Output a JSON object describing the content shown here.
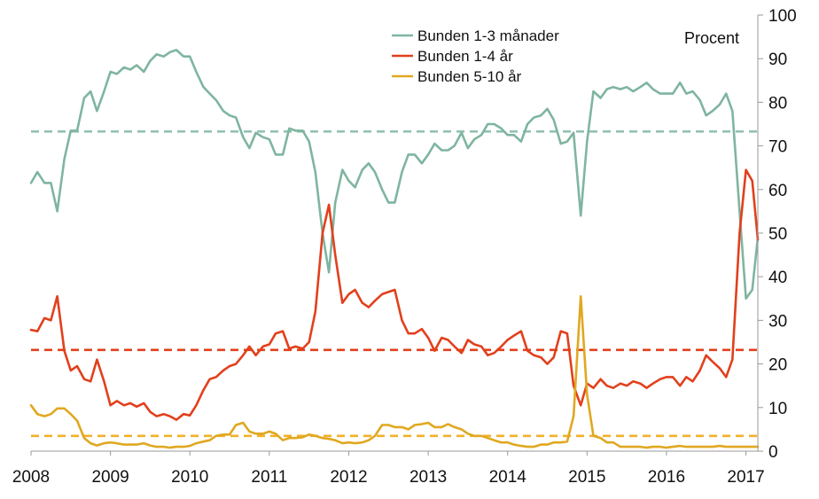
{
  "chart_data": {
    "type": "line",
    "unit_label": "Procent",
    "ylim": [
      0,
      100
    ],
    "yticks": [
      "0",
      "10",
      "20",
      "30",
      "40",
      "50",
      "60",
      "70",
      "80",
      "90",
      "100"
    ],
    "xlim": [
      2008,
      2017.15
    ],
    "xticks": [
      "2008",
      "2009",
      "2010",
      "2011",
      "2012",
      "2013",
      "2014",
      "2015",
      "2016",
      "2017"
    ],
    "legend_position": "top-right",
    "colors": {
      "green": "#7fb5a0",
      "red": "#e2401c",
      "gold": "#e0a820"
    },
    "series": [
      {
        "name": "Bunden 1-3 månader",
        "color": "#7fb5a0",
        "x": [
          2008.0,
          2008.08,
          2008.17,
          2008.25,
          2008.33,
          2008.42,
          2008.5,
          2008.58,
          2008.67,
          2008.75,
          2008.83,
          2008.92,
          2009.0,
          2009.08,
          2009.17,
          2009.25,
          2009.33,
          2009.42,
          2009.5,
          2009.58,
          2009.67,
          2009.75,
          2009.83,
          2009.92,
          2010.0,
          2010.08,
          2010.17,
          2010.25,
          2010.33,
          2010.42,
          2010.5,
          2010.58,
          2010.67,
          2010.75,
          2010.83,
          2010.92,
          2011.0,
          2011.08,
          2011.17,
          2011.25,
          2011.33,
          2011.42,
          2011.5,
          2011.58,
          2011.67,
          2011.75,
          2011.83,
          2011.92,
          2012.0,
          2012.08,
          2012.17,
          2012.25,
          2012.33,
          2012.42,
          2012.5,
          2012.58,
          2012.67,
          2012.75,
          2012.83,
          2012.92,
          2013.0,
          2013.08,
          2013.17,
          2013.25,
          2013.33,
          2013.42,
          2013.5,
          2013.58,
          2013.67,
          2013.75,
          2013.83,
          2013.92,
          2014.0,
          2014.08,
          2014.17,
          2014.25,
          2014.33,
          2014.42,
          2014.5,
          2014.58,
          2014.67,
          2014.75,
          2014.83,
          2014.92,
          2015.0,
          2015.08,
          2015.17,
          2015.25,
          2015.33,
          2015.42,
          2015.5,
          2015.58,
          2015.67,
          2015.75,
          2015.83,
          2015.92,
          2016.0,
          2016.08,
          2016.17,
          2016.25,
          2016.33,
          2016.42,
          2016.5,
          2016.58,
          2016.67,
          2016.75,
          2016.83,
          2016.92,
          2017.0,
          2017.08,
          2017.15
        ],
        "values": [
          61.5,
          64,
          61.5,
          61.5,
          55,
          67,
          73.5,
          73.5,
          81,
          82.5,
          78,
          82.5,
          87,
          86.5,
          88,
          87.5,
          88.5,
          87,
          89.5,
          91,
          90.5,
          91.5,
          92,
          90.5,
          90.5,
          87,
          83.5,
          82,
          80.5,
          78,
          77,
          76.5,
          72,
          69.5,
          73,
          72,
          71.5,
          68,
          68,
          74,
          73.5,
          73.5,
          71,
          64,
          50,
          41,
          57,
          64.5,
          62,
          60.5,
          64.5,
          66,
          64,
          60,
          57,
          57,
          64,
          68,
          68,
          66,
          68,
          70.5,
          69,
          69,
          70,
          73,
          69.5,
          71.5,
          72.5,
          75,
          75,
          74,
          72.5,
          72.5,
          71,
          75,
          76.5,
          77,
          78.5,
          76,
          70.5,
          71,
          73,
          54,
          71,
          82.5,
          81,
          83,
          83.5,
          83,
          83.5,
          82.5,
          83.5,
          84.5,
          83,
          82,
          82,
          82,
          84.5,
          82,
          82.5,
          80.5,
          77,
          78,
          79.5,
          82,
          78,
          55,
          35,
          37,
          49
        ]
      },
      {
        "name": "Bunden 1-4 år",
        "color": "#e2401c",
        "x": [
          2008.0,
          2008.08,
          2008.17,
          2008.25,
          2008.33,
          2008.42,
          2008.5,
          2008.58,
          2008.67,
          2008.75,
          2008.83,
          2008.92,
          2009.0,
          2009.08,
          2009.17,
          2009.25,
          2009.33,
          2009.42,
          2009.5,
          2009.58,
          2009.67,
          2009.75,
          2009.83,
          2009.92,
          2010.0,
          2010.08,
          2010.17,
          2010.25,
          2010.33,
          2010.42,
          2010.5,
          2010.58,
          2010.67,
          2010.75,
          2010.83,
          2010.92,
          2011.0,
          2011.08,
          2011.17,
          2011.25,
          2011.33,
          2011.42,
          2011.5,
          2011.58,
          2011.67,
          2011.75,
          2011.83,
          2011.92,
          2012.0,
          2012.08,
          2012.17,
          2012.25,
          2012.33,
          2012.42,
          2012.5,
          2012.58,
          2012.67,
          2012.75,
          2012.83,
          2012.92,
          2013.0,
          2013.08,
          2013.17,
          2013.25,
          2013.33,
          2013.42,
          2013.5,
          2013.58,
          2013.67,
          2013.75,
          2013.83,
          2013.92,
          2014.0,
          2014.08,
          2014.17,
          2014.25,
          2014.33,
          2014.42,
          2014.5,
          2014.58,
          2014.67,
          2014.75,
          2014.83,
          2014.92,
          2015.0,
          2015.08,
          2015.17,
          2015.25,
          2015.33,
          2015.42,
          2015.5,
          2015.58,
          2015.67,
          2015.75,
          2015.83,
          2015.92,
          2016.0,
          2016.08,
          2016.17,
          2016.25,
          2016.33,
          2016.42,
          2016.5,
          2016.58,
          2016.67,
          2016.75,
          2016.83,
          2016.92,
          2017.0,
          2017.08,
          2017.15
        ],
        "values": [
          27.8,
          27.5,
          30.5,
          30,
          35.5,
          23,
          18.5,
          19.5,
          16.5,
          16,
          21,
          16,
          10.5,
          11.5,
          10.5,
          11,
          10.2,
          11,
          9,
          8,
          8.5,
          8,
          7.2,
          8.5,
          8.2,
          10.5,
          14,
          16.5,
          17,
          18.5,
          19.5,
          20,
          22,
          24,
          22,
          24,
          24.5,
          27,
          27.5,
          23.5,
          24,
          23.5,
          25,
          32,
          50,
          56.5,
          45,
          34,
          36,
          37,
          34,
          33,
          34.5,
          36,
          36.5,
          37,
          30,
          27,
          27,
          28,
          26,
          23,
          26,
          25.5,
          24,
          22.5,
          25.5,
          24.5,
          24,
          22,
          22.5,
          24,
          25.5,
          26.5,
          27.5,
          23,
          22,
          21.5,
          20,
          21.5,
          27.5,
          27,
          15,
          10.5,
          15.5,
          14.5,
          16.5,
          15,
          14.5,
          15.5,
          15,
          16,
          15.5,
          14.5,
          15.5,
          16.5,
          17,
          17,
          15,
          17,
          16,
          18.5,
          22,
          20.5,
          19,
          17,
          21,
          50,
          64.5,
          62,
          48.5
        ]
      },
      {
        "name": "Bunden 5-10 år",
        "color": "#e0a820",
        "x": [
          2008.0,
          2008.08,
          2008.17,
          2008.25,
          2008.33,
          2008.42,
          2008.5,
          2008.58,
          2008.67,
          2008.75,
          2008.83,
          2008.92,
          2009.0,
          2009.08,
          2009.17,
          2009.25,
          2009.33,
          2009.42,
          2009.5,
          2009.58,
          2009.67,
          2009.75,
          2009.83,
          2009.92,
          2010.0,
          2010.08,
          2010.17,
          2010.25,
          2010.33,
          2010.42,
          2010.5,
          2010.58,
          2010.67,
          2010.75,
          2010.83,
          2010.92,
          2011.0,
          2011.08,
          2011.17,
          2011.25,
          2011.33,
          2011.42,
          2011.5,
          2011.58,
          2011.67,
          2011.75,
          2011.83,
          2011.92,
          2012.0,
          2012.08,
          2012.17,
          2012.25,
          2012.33,
          2012.42,
          2012.5,
          2012.58,
          2012.67,
          2012.75,
          2012.83,
          2012.92,
          2013.0,
          2013.08,
          2013.17,
          2013.25,
          2013.33,
          2013.42,
          2013.5,
          2013.58,
          2013.67,
          2013.75,
          2013.83,
          2013.92,
          2014.0,
          2014.08,
          2014.17,
          2014.25,
          2014.33,
          2014.42,
          2014.5,
          2014.58,
          2014.67,
          2014.75,
          2014.83,
          2014.92,
          2015.0,
          2015.08,
          2015.17,
          2015.25,
          2015.33,
          2015.42,
          2015.5,
          2015.58,
          2015.67,
          2015.75,
          2015.83,
          2015.92,
          2016.0,
          2016.08,
          2016.17,
          2016.25,
          2016.33,
          2016.42,
          2016.5,
          2016.58,
          2016.67,
          2016.75,
          2016.83,
          2016.92,
          2017.0,
          2017.08,
          2017.15
        ],
        "values": [
          10.5,
          8.5,
          8,
          8.5,
          9.8,
          9.8,
          8.5,
          7,
          3,
          1.8,
          1.3,
          1.8,
          2,
          1.8,
          1.5,
          1.5,
          1.5,
          1.8,
          1.3,
          1,
          1,
          0.8,
          1,
          1,
          1.2,
          1.8,
          2.2,
          2.5,
          3.5,
          3.8,
          3.8,
          6,
          6.5,
          4.5,
          4,
          4,
          4.5,
          4,
          2.5,
          3,
          3,
          3.2,
          3.8,
          3.5,
          3,
          2.8,
          2.5,
          1.8,
          2,
          1.8,
          2,
          2.5,
          3.5,
          6,
          6,
          5.5,
          5.5,
          5,
          6,
          6.2,
          6.5,
          5.5,
          5.5,
          6.2,
          5.5,
          5,
          4,
          3.5,
          3.5,
          3,
          2.5,
          2,
          2,
          1.5,
          1.2,
          1,
          1,
          1.5,
          1.5,
          2,
          2,
          2.2,
          8,
          35.5,
          13,
          3.5,
          3,
          2,
          2,
          1,
          1,
          1,
          1,
          0.8,
          1,
          1,
          0.8,
          1,
          1.2,
          1,
          1,
          1,
          1,
          1,
          1.2,
          1,
          1,
          1,
          1,
          1,
          1
        ]
      }
    ],
    "averages": [
      {
        "series": "Bunden 1-3 månader",
        "value": 73.3,
        "color": "#8fbfae"
      },
      {
        "series": "Bunden 1-4 år",
        "value": 23.2,
        "color": "#e2401c"
      },
      {
        "series": "Bunden 5-10 år",
        "value": 3.5,
        "color": "#f2b12b"
      }
    ]
  }
}
